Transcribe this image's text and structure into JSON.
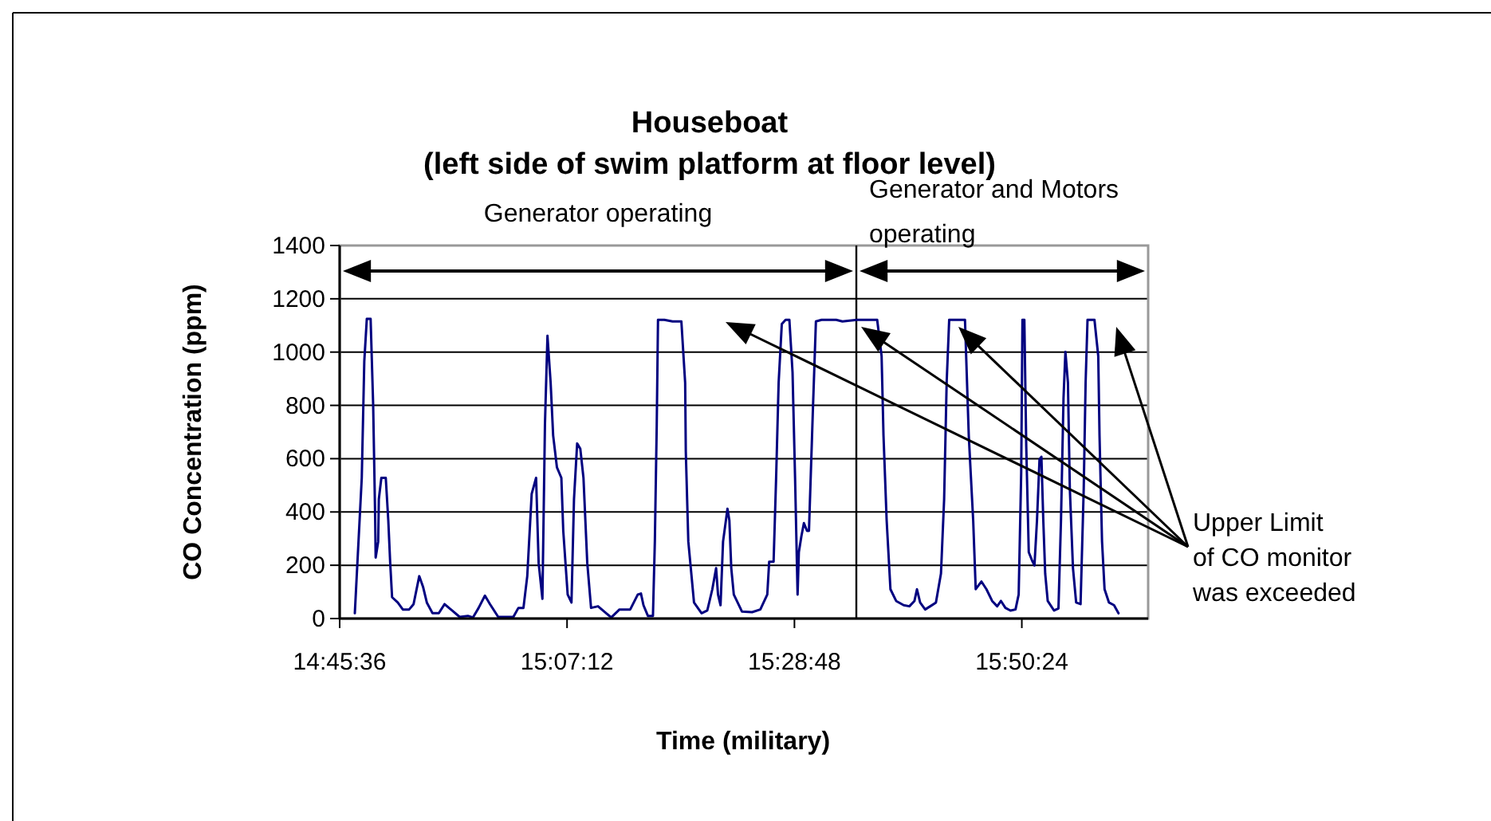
{
  "chart_data": {
    "type": "line",
    "title": "Houseboat",
    "subtitle": "(left side of swim platform at floor level)",
    "xlabel": "Time (military)",
    "ylabel": "CO Concentration (ppm)",
    "xlim": [
      14.76,
      16.04
    ],
    "xticks": [
      {
        "value": 14.76,
        "label": "14:45:36"
      },
      {
        "value": 15.12,
        "label": "15:07:12"
      },
      {
        "value": 15.48,
        "label": "15:28:48"
      },
      {
        "value": 15.84,
        "label": "15:50:24"
      }
    ],
    "ylim": [
      0,
      1400
    ],
    "yticks": [
      0,
      200,
      400,
      600,
      800,
      1000,
      1200,
      1400
    ],
    "grid": "y",
    "marker": "none",
    "line_style": "solid",
    "ref_lines": [
      {
        "axis": "x",
        "value": 15.578,
        "color": "#000000"
      }
    ],
    "annotations": [
      "Generator operating",
      "Generator and Motors operating",
      "Upper Limit of CO monitor was exceeded"
    ],
    "series": [
      {
        "color": "#000080",
        "x": [
          14.784,
          14.795,
          14.799,
          14.803,
          14.809,
          14.813,
          14.816,
          14.817,
          14.821,
          14.822,
          14.826,
          14.833,
          14.837,
          14.84,
          14.843,
          14.852,
          14.86,
          14.87,
          14.877,
          14.886,
          14.892,
          14.898,
          14.907,
          14.917,
          14.926,
          14.938,
          14.95,
          14.963,
          14.971,
          14.98,
          14.99,
          14.998,
          15.011,
          15.035,
          15.043,
          15.051,
          15.057,
          15.064,
          15.071,
          15.075,
          15.081,
          15.085,
          15.089,
          15.094,
          15.098,
          15.104,
          15.111,
          15.114,
          15.121,
          15.127,
          15.131,
          15.136,
          15.141,
          15.146,
          15.152,
          15.158,
          15.169,
          15.182,
          15.19,
          15.203,
          15.22,
          15.232,
          15.237,
          15.241,
          15.248,
          15.256,
          15.259,
          15.262,
          15.264,
          15.274,
          15.287,
          15.301,
          15.307,
          15.308,
          15.312,
          15.321,
          15.333,
          15.342,
          15.35,
          15.356,
          15.359,
          15.363,
          15.367,
          15.374,
          15.377,
          15.38,
          15.384,
          15.397,
          15.413,
          15.426,
          15.437,
          15.44,
          15.447,
          15.451,
          15.455,
          15.46,
          15.466,
          15.472,
          15.477,
          15.481,
          15.485,
          15.487,
          15.491,
          15.495,
          15.5,
          15.503,
          15.509,
          15.514,
          15.523,
          15.546,
          15.556,
          15.579,
          15.611,
          15.618,
          15.621,
          15.626,
          15.632,
          15.641,
          15.653,
          15.662,
          15.67,
          15.674,
          15.679,
          15.687,
          15.695,
          15.704,
          15.712,
          15.717,
          15.721,
          15.725,
          15.75,
          15.756,
          15.763,
          15.767,
          15.776,
          15.784,
          15.793,
          15.801,
          15.807,
          15.814,
          15.822,
          15.83,
          15.835,
          15.839,
          15.841,
          15.844,
          15.847,
          15.851,
          15.856,
          15.86,
          15.864,
          15.868,
          15.871,
          15.874,
          15.877,
          15.881,
          15.891,
          15.898,
          15.902,
          15.906,
          15.909,
          15.913,
          15.916,
          15.921,
          15.926,
          15.933,
          15.938,
          15.941,
          15.944,
          15.955,
          15.961,
          15.963,
          15.967,
          15.971,
          15.978,
          15.986,
          15.993
        ],
        "values": [
          20,
          528,
          966,
          1125,
          1125,
          806,
          408,
          229,
          289,
          448,
          528,
          528,
          368,
          209,
          80,
          60,
          34,
          34,
          54,
          159,
          119,
          60,
          20,
          20,
          54,
          30,
          6,
          10,
          4,
          40,
          86,
          54,
          6,
          6,
          40,
          40,
          159,
          468,
          528,
          209,
          74,
          727,
          1061,
          886,
          687,
          567,
          528,
          329,
          90,
          60,
          448,
          657,
          637,
          528,
          209,
          40,
          46,
          20,
          4,
          34,
          34,
          90,
          94,
          50,
          10,
          10,
          289,
          727,
          1121,
          1121,
          1115,
          1115,
          884,
          627,
          289,
          60,
          20,
          30,
          110,
          189,
          90,
          50,
          289,
          412,
          368,
          189,
          90,
          26,
          24,
          34,
          90,
          213,
          213,
          528,
          886,
          1105,
          1121,
          1121,
          924,
          528,
          90,
          249,
          309,
          358,
          329,
          329,
          767,
          1115,
          1121,
          1121,
          1115,
          1121,
          1121,
          985,
          687,
          368,
          110,
          66,
          50,
          46,
          66,
          110,
          60,
          34,
          46,
          60,
          169,
          448,
          886,
          1121,
          1121,
          687,
          368,
          110,
          139,
          110,
          66,
          46,
          66,
          40,
          30,
          34,
          90,
          547,
          1121,
          1121,
          647,
          249,
          219,
          199,
          368,
          597,
          607,
          368,
          169,
          66,
          30,
          38,
          368,
          826,
          1001,
          886,
          488,
          189,
          60,
          54,
          488,
          886,
          1121,
          1121,
          985,
          687,
          289,
          110,
          60,
          50,
          20
        ]
      }
    ]
  }
}
